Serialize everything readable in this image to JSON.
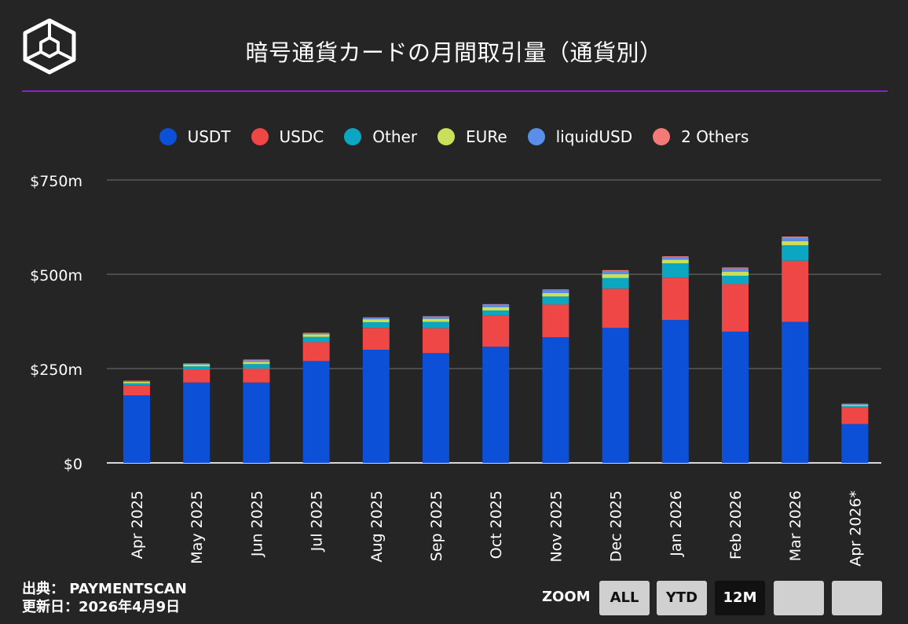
{
  "header": {
    "title": "暗号通貨カードの月間取引量（通貨別）"
  },
  "footer": {
    "source_line": "出典： PAYMENTSCAN",
    "updated_line": "更新日：2026年4月9日"
  },
  "zoom": {
    "label": "ZOOM",
    "buttons": [
      "ALL",
      "YTD",
      "12M",
      "",
      ""
    ],
    "active": "12M"
  },
  "colors": {
    "background": "#252525",
    "accent_rule": "#8a1fd0",
    "grid": "#5a5a5a"
  },
  "chart_data": {
    "type": "bar",
    "stacked": true,
    "title": "暗号通貨カードの月間取引量（通貨別）",
    "xlabel": "",
    "ylabel": "",
    "ylim": [
      0,
      750
    ],
    "yticks": [
      0,
      250,
      500,
      750
    ],
    "ytick_labels": [
      "$0",
      "$250m",
      "$500m",
      "$750m"
    ],
    "legend_position": "top-center",
    "categories": [
      "Apr 2025",
      "May 2025",
      "Jun 2025",
      "Jul 2025",
      "Aug 2025",
      "Sep 2025",
      "Oct 2025",
      "Nov 2025",
      "Dec 2025",
      "Jan 2026",
      "Feb 2026",
      "Mar 2026",
      "Apr 2026*"
    ],
    "series": [
      {
        "name": "USDT",
        "color": "#0d50d8",
        "values": [
          179,
          213,
          213,
          270,
          300,
          291,
          308,
          333,
          358,
          379,
          348,
          374,
          103
        ]
      },
      {
        "name": "USDC",
        "color": "#ef4646",
        "values": [
          27,
          35,
          37,
          50,
          58,
          66,
          82,
          87,
          104,
          112,
          126,
          162,
          43
        ]
      },
      {
        "name": "Other",
        "color": "#0aa6c2",
        "values": [
          5,
          8,
          12,
          14,
          15,
          17,
          14,
          21,
          28,
          38,
          22,
          41,
          5
        ]
      },
      {
        "name": "EURe",
        "color": "#c9e05a",
        "values": [
          4,
          5,
          6,
          7,
          8,
          8,
          9,
          9,
          10,
          10,
          11,
          11,
          3
        ]
      },
      {
        "name": "liquidUSD",
        "color": "#5a8eea",
        "values": [
          2,
          2,
          4,
          3,
          4,
          6,
          7,
          8,
          8,
          7,
          8,
          8,
          2
        ]
      },
      {
        "name": "2 Others",
        "color": "#f47a7a",
        "values": [
          1,
          1,
          2,
          1,
          1,
          1,
          1,
          2,
          3,
          2,
          3,
          4,
          1
        ]
      }
    ]
  }
}
